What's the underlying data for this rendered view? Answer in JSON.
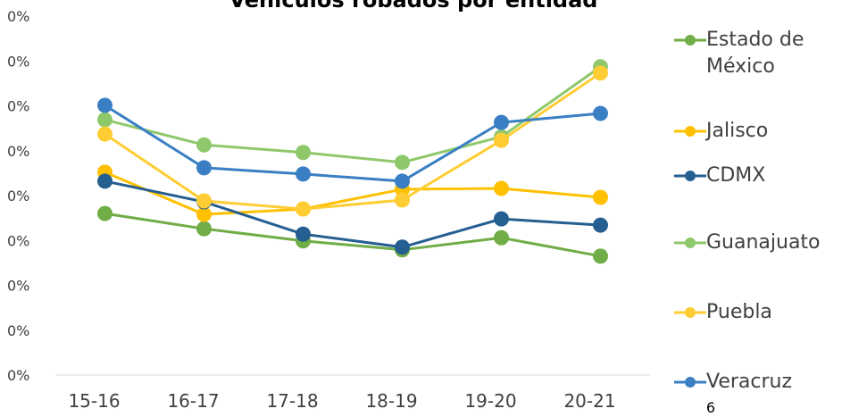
{
  "chart_data": {
    "type": "line",
    "title": "Vehículos robados por entidad",
    "page_number": "6",
    "categories": [
      "15-16",
      "16-17",
      "17-18",
      "18-19",
      "19-20",
      "20-21"
    ],
    "ylim": [
      0,
      0.008
    ],
    "yticks": [
      {
        "value": 0,
        "label": "0%"
      },
      {
        "value": 0.001,
        "label": "0%"
      },
      {
        "value": 0.002,
        "label": "0%"
      },
      {
        "value": 0.003,
        "label": "0%"
      },
      {
        "value": 0.004,
        "label": "0%"
      },
      {
        "value": 0.005,
        "label": "0%"
      },
      {
        "value": 0.006,
        "label": "0%"
      },
      {
        "value": 0.007,
        "label": "0%"
      },
      {
        "value": 0.008,
        "label": "0%"
      }
    ],
    "grid": false,
    "legend": "right",
    "series": [
      {
        "name": "Estado de México",
        "color": "#70ad47",
        "values": [
          0.0036,
          0.00326,
          0.00299,
          0.00279,
          0.00306,
          0.00265
        ]
      },
      {
        "name": "Jalisco",
        "color": "#ffc000",
        "values": [
          0.00452,
          0.00358,
          0.0037,
          0.00414,
          0.00416,
          0.00396
        ]
      },
      {
        "name": "CDMX",
        "color": "#255e91",
        "values": [
          0.00432,
          0.00386,
          0.00314,
          0.00285,
          0.00348,
          0.00334
        ]
      },
      {
        "name": "Guanajuato",
        "color": "#8fc86b",
        "values": [
          0.00569,
          0.00513,
          0.00496,
          0.00474,
          0.00531,
          0.00687
        ]
      },
      {
        "name": "Puebla",
        "color": "#ffcd33",
        "values": [
          0.00537,
          0.00388,
          0.0037,
          0.0039,
          0.00523,
          0.00673
        ]
      },
      {
        "name": "Veracruz",
        "color": "#3a7fc4",
        "values": [
          0.00601,
          0.00462,
          0.00448,
          0.00432,
          0.00563,
          0.00583
        ]
      }
    ]
  }
}
